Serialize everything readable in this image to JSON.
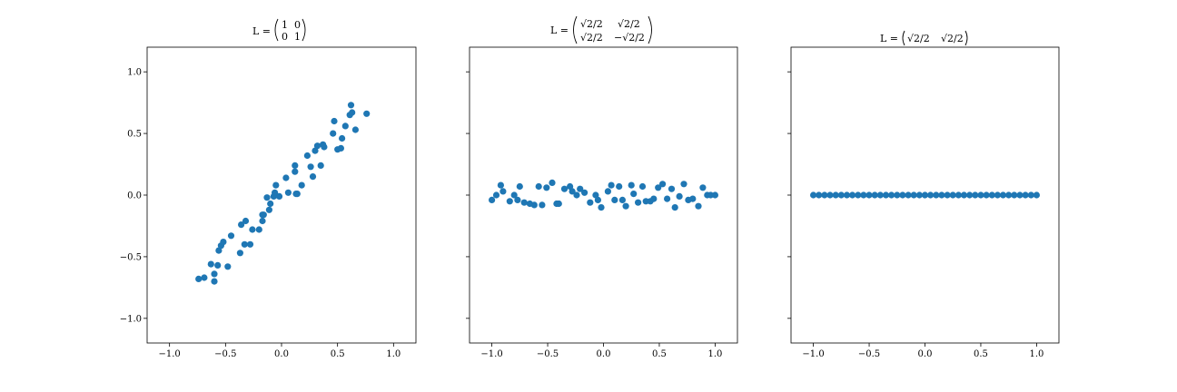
{
  "colors": {
    "marker": "#1f77b4",
    "axes": "#000000",
    "background": "#ffffff"
  },
  "chart_data": [
    {
      "type": "scatter",
      "title": {
        "prefix": "L =",
        "matrix": [
          [
            "1",
            "0"
          ],
          [
            "0",
            "1"
          ]
        ]
      },
      "xlim": [
        -1.2,
        1.2
      ],
      "ylim": [
        -1.2,
        1.2
      ],
      "xticks": [
        -1.0,
        -0.5,
        0.0,
        0.5,
        1.0
      ],
      "xtick_labels": [
        "−1.0",
        "−0.5",
        "0.0",
        "0.5",
        "1.0"
      ],
      "yticks": [
        -1.0,
        -0.5,
        0.0,
        0.5,
        1.0
      ],
      "ytick_labels": [
        "−1.0",
        "−0.5",
        "0.0",
        "0.5",
        "1.0"
      ],
      "show_yticklabels": true,
      "grid": false,
      "series": [
        {
          "x": [
            -0.74,
            -0.69,
            -0.63,
            -0.6,
            -0.6,
            -0.57,
            -0.56,
            -0.54,
            -0.52,
            -0.48,
            -0.45,
            -0.37,
            -0.36,
            -0.33,
            -0.32,
            -0.28,
            -0.26,
            -0.2,
            -0.17,
            -0.17,
            -0.16,
            -0.13,
            -0.11,
            -0.1,
            -0.07,
            -0.06,
            -0.05,
            -0.02,
            0.04,
            0.06,
            0.12,
            0.12,
            0.13,
            0.14,
            0.18,
            0.23,
            0.26,
            0.28,
            0.3,
            0.32,
            0.35,
            0.37,
            0.38,
            0.46,
            0.47,
            0.5,
            0.53,
            0.54,
            0.57,
            0.61,
            0.62,
            0.63,
            0.66,
            0.76
          ],
          "y": [
            -0.68,
            -0.67,
            -0.56,
            -0.64,
            -0.7,
            -0.57,
            -0.45,
            -0.41,
            -0.38,
            -0.58,
            -0.33,
            -0.47,
            -0.24,
            -0.4,
            -0.21,
            -0.4,
            -0.28,
            -0.28,
            -0.21,
            -0.16,
            -0.16,
            -0.02,
            -0.12,
            -0.07,
            -0.01,
            0.02,
            0.08,
            -0.01,
            0.14,
            0.02,
            0.24,
            0.19,
            0.01,
            0.01,
            0.08,
            0.32,
            0.23,
            0.15,
            0.36,
            0.4,
            0.24,
            0.41,
            0.39,
            0.5,
            0.6,
            0.37,
            0.38,
            0.46,
            0.56,
            0.65,
            0.73,
            0.67,
            0.53,
            0.66
          ]
        }
      ]
    },
    {
      "type": "scatter",
      "title": {
        "prefix": "L =",
        "matrix": [
          [
            "√2/2",
            "√2/2"
          ],
          [
            "√2/2",
            "−√2/2"
          ]
        ]
      },
      "xlim": [
        -1.2,
        1.2
      ],
      "ylim": [
        -1.2,
        1.2
      ],
      "xticks": [
        -1.0,
        -0.5,
        0.0,
        0.5,
        1.0
      ],
      "xtick_labels": [
        "−1.0",
        "−0.5",
        "0.0",
        "0.5",
        "1.0"
      ],
      "yticks": [
        -1.0,
        -0.5,
        0.0,
        0.5,
        1.0
      ],
      "show_yticklabels": false,
      "grid": false,
      "series": [
        {
          "x": [
            -1.0,
            -0.96,
            -0.92,
            -0.9,
            -0.84,
            -0.8,
            -0.77,
            -0.75,
            -0.71,
            -0.66,
            -0.62,
            -0.58,
            -0.55,
            -0.51,
            -0.46,
            -0.42,
            -0.4,
            -0.35,
            -0.3,
            -0.28,
            -0.24,
            -0.21,
            -0.17,
            -0.12,
            -0.07,
            -0.05,
            -0.02,
            0.04,
            0.07,
            0.1,
            0.14,
            0.17,
            0.2,
            0.25,
            0.27,
            0.31,
            0.35,
            0.38,
            0.42,
            0.45,
            0.49,
            0.53,
            0.57,
            0.61,
            0.64,
            0.68,
            0.72,
            0.76,
            0.8,
            0.85,
            0.89,
            0.93,
            0.96,
            1.0
          ],
          "y": [
            -0.04,
            0.0,
            0.08,
            0.03,
            -0.05,
            0.0,
            -0.04,
            0.07,
            -0.06,
            -0.07,
            -0.08,
            0.07,
            -0.08,
            0.06,
            0.1,
            -0.07,
            -0.07,
            0.05,
            0.07,
            0.03,
            0.0,
            0.05,
            0.02,
            -0.06,
            0.0,
            -0.04,
            -0.1,
            0.03,
            0.08,
            -0.04,
            0.07,
            -0.04,
            -0.09,
            0.08,
            0.01,
            -0.06,
            0.07,
            -0.05,
            -0.05,
            -0.03,
            0.06,
            0.09,
            -0.03,
            0.05,
            -0.1,
            -0.01,
            0.09,
            -0.04,
            -0.03,
            -0.09,
            0.06,
            0.0,
            0.0,
            0.0
          ]
        }
      ]
    },
    {
      "type": "scatter",
      "title": {
        "prefix": "L =",
        "matrix": [
          [
            "√2/2",
            "√2/2"
          ]
        ]
      },
      "xlim": [
        -1.2,
        1.2
      ],
      "ylim": [
        -1.2,
        1.2
      ],
      "xticks": [
        -1.0,
        -0.5,
        0.0,
        0.5,
        1.0
      ],
      "xtick_labels": [
        "−1.0",
        "−0.5",
        "0.0",
        "0.5",
        "1.0"
      ],
      "yticks": [
        -1.0,
        -0.5,
        0.0,
        0.5,
        1.0
      ],
      "show_yticklabels": false,
      "grid": false,
      "series": [
        {
          "x": [
            -1.0,
            -0.95,
            -0.9,
            -0.85,
            -0.8,
            -0.75,
            -0.7,
            -0.65,
            -0.6,
            -0.55,
            -0.5,
            -0.45,
            -0.4,
            -0.35,
            -0.3,
            -0.25,
            -0.2,
            -0.15,
            -0.1,
            -0.05,
            0.0,
            0.05,
            0.1,
            0.15,
            0.2,
            0.25,
            0.3,
            0.35,
            0.4,
            0.45,
            0.5,
            0.55,
            0.6,
            0.65,
            0.7,
            0.75,
            0.8,
            0.85,
            0.9,
            0.95,
            1.0
          ],
          "y": [
            0,
            0,
            0,
            0,
            0,
            0,
            0,
            0,
            0,
            0,
            0,
            0,
            0,
            0,
            0,
            0,
            0,
            0,
            0,
            0,
            0,
            0,
            0,
            0,
            0,
            0,
            0,
            0,
            0,
            0,
            0,
            0,
            0,
            0,
            0,
            0,
            0,
            0,
            0,
            0,
            0
          ]
        }
      ]
    }
  ]
}
